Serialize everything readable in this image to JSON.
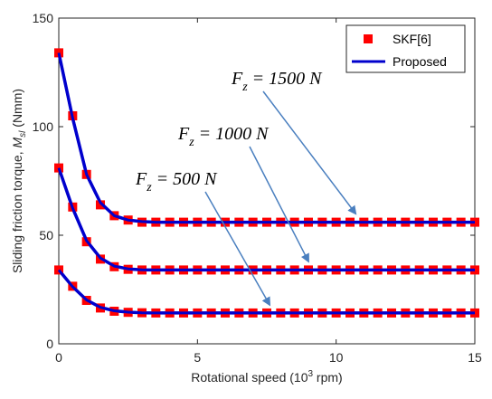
{
  "chart_data": {
    "type": "line",
    "xlabel": "Rotational speed (10 3 rpm)",
    "ylabel": "Sliding friction torque, M sl (Nmm)",
    "xlim": [
      0,
      15
    ],
    "ylim": [
      0,
      150
    ],
    "xticks": [
      0,
      5,
      10,
      15
    ],
    "yticks": [
      0,
      50,
      100,
      150
    ],
    "x_tick_labels": [
      "0",
      "5",
      "10",
      "15"
    ],
    "y_tick_labels": [
      "0",
      "50",
      "100",
      "150"
    ],
    "grid": false,
    "legend_position": "top-right",
    "legend_skf": "SKF[6]",
    "legend_proposed": "Proposed",
    "colors": {
      "markers": "#ff0000",
      "line": "#0000cd",
      "arrow": "#4a7fbf",
      "axis": "#262626"
    },
    "series": [
      {
        "load": "1500 N",
        "x": [
          0,
          0.5,
          1,
          1.5,
          2,
          2.5,
          3,
          3.5,
          4,
          4.5,
          5,
          5.5,
          6,
          6.5,
          7,
          7.5,
          8,
          8.5,
          9,
          9.5,
          10,
          10.5,
          11,
          11.5,
          12,
          12.5,
          13,
          13.5,
          14,
          14.5,
          15
        ],
        "skf": [
          134,
          105,
          78,
          64,
          59,
          57,
          56,
          56,
          56,
          56,
          56,
          56,
          56,
          56,
          56,
          56,
          56,
          56,
          56,
          56,
          56,
          56,
          56,
          56,
          56,
          56,
          56,
          56,
          56,
          56,
          56
        ],
        "proposed": [
          134,
          104,
          78,
          65,
          59,
          57,
          56.3,
          56,
          56,
          56,
          56,
          56,
          56,
          56,
          56,
          56,
          56,
          56,
          56,
          56,
          56,
          56,
          56,
          56,
          56,
          56,
          56,
          56,
          56,
          56,
          56
        ]
      },
      {
        "load": "1000 N",
        "x": [
          0,
          0.5,
          1,
          1.5,
          2,
          2.5,
          3,
          3.5,
          4,
          4.5,
          5,
          5.5,
          6,
          6.5,
          7,
          7.5,
          8,
          8.5,
          9,
          9.5,
          10,
          10.5,
          11,
          11.5,
          12,
          12.5,
          13,
          13.5,
          14,
          14.5,
          15
        ],
        "skf": [
          81,
          63,
          47,
          39,
          35.5,
          34.3,
          34,
          34,
          34,
          34,
          34,
          34,
          34,
          34,
          34,
          34,
          34,
          34,
          34,
          34,
          34,
          34,
          34,
          34,
          34,
          34,
          34,
          34,
          34,
          34,
          34
        ],
        "proposed": [
          81,
          62.5,
          47.5,
          39.5,
          35.8,
          34.5,
          34.1,
          34,
          34,
          34,
          34,
          34,
          34,
          34,
          34,
          34,
          34,
          34,
          34,
          34,
          34,
          34,
          34,
          34,
          34,
          34,
          34,
          34,
          34,
          34,
          34
        ]
      },
      {
        "load": "500 N",
        "x": [
          0,
          0.5,
          1,
          1.5,
          2,
          2.5,
          3,
          3.5,
          4,
          4.5,
          5,
          5.5,
          6,
          6.5,
          7,
          7.5,
          8,
          8.5,
          9,
          9.5,
          10,
          10.5,
          11,
          11.5,
          12,
          12.5,
          13,
          13.5,
          14,
          14.5,
          15
        ],
        "skf": [
          34,
          26.5,
          20,
          16.5,
          15,
          14.5,
          14.3,
          14.2,
          14.2,
          14.2,
          14.2,
          14.2,
          14.2,
          14.2,
          14.2,
          14.2,
          14.2,
          14.2,
          14.2,
          14.2,
          14.2,
          14.2,
          14.2,
          14.2,
          14.2,
          14.2,
          14.2,
          14.2,
          14.2,
          14.2,
          14.2
        ],
        "proposed": [
          34,
          26.3,
          20.2,
          16.8,
          15.2,
          14.6,
          14.3,
          14.2,
          14.2,
          14.2,
          14.2,
          14.2,
          14.2,
          14.2,
          14.2,
          14.2,
          14.2,
          14.2,
          14.2,
          14.2,
          14.2,
          14.2,
          14.2,
          14.2,
          14.2,
          14.2,
          14.2,
          14.2,
          14.2,
          14.2,
          14.2
        ]
      }
    ],
    "annotations": [
      {
        "var": "F",
        "sub": "z",
        "value": "= 1500 N",
        "arrow_to": [
          10.7,
          60
        ]
      },
      {
        "var": "F",
        "sub": "z",
        "value": "= 1000 N",
        "arrow_to": [
          9.0,
          38
        ]
      },
      {
        "var": "F",
        "sub": "z",
        "value": "= 500 N",
        "arrow_to": [
          7.6,
          18
        ]
      }
    ]
  }
}
